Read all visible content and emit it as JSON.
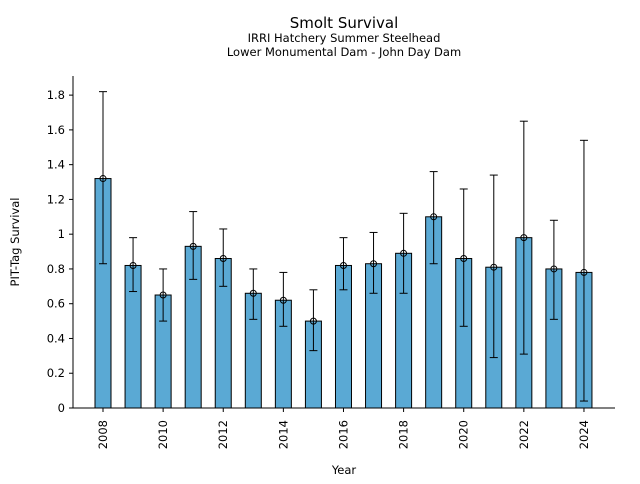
{
  "chart_data": {
    "type": "bar",
    "title": "Smolt Survival",
    "subtitle_lines": [
      "IRRI Hatchery Summer Steelhead",
      "Lower Monumental Dam - John Day Dam"
    ],
    "xlabel": "Year",
    "ylabel": "PIT-Tag Survival",
    "x": [
      2008,
      2009,
      2010,
      2011,
      2012,
      2013,
      2014,
      2015,
      2016,
      2017,
      2018,
      2019,
      2020,
      2021,
      2022,
      2023,
      2024
    ],
    "values": [
      1.32,
      0.82,
      0.65,
      0.93,
      0.86,
      0.66,
      0.62,
      0.5,
      0.82,
      0.83,
      0.89,
      1.1,
      0.86,
      0.81,
      0.98,
      0.8,
      0.78
    ],
    "ci_lower": [
      0.83,
      0.67,
      0.5,
      0.74,
      0.7,
      0.51,
      0.47,
      0.33,
      0.68,
      0.66,
      0.66,
      0.83,
      0.47,
      0.29,
      0.31,
      0.51,
      0.04
    ],
    "ci_upper": [
      1.82,
      0.98,
      0.8,
      1.13,
      1.03,
      0.8,
      0.78,
      0.68,
      0.98,
      1.01,
      1.12,
      1.36,
      1.26,
      1.34,
      1.65,
      1.08,
      1.54
    ],
    "x_ticks": [
      "2008",
      "2010",
      "2012",
      "2014",
      "2016",
      "2018",
      "2020",
      "2022",
      "2024"
    ],
    "y_ticks": [
      0,
      0.2,
      0.4,
      0.6,
      0.8,
      1,
      1.2,
      1.4,
      1.6,
      1.8
    ],
    "y_tick_labels": [
      "0",
      "0.2",
      "0.4",
      "0.6",
      "0.8",
      "1",
      "1.2",
      "1.4",
      "1.6",
      "1.8"
    ],
    "ylim": [
      0,
      1.91
    ],
    "grid": false,
    "bar_color": "#5aa9d4",
    "edge_color": "#000000"
  }
}
